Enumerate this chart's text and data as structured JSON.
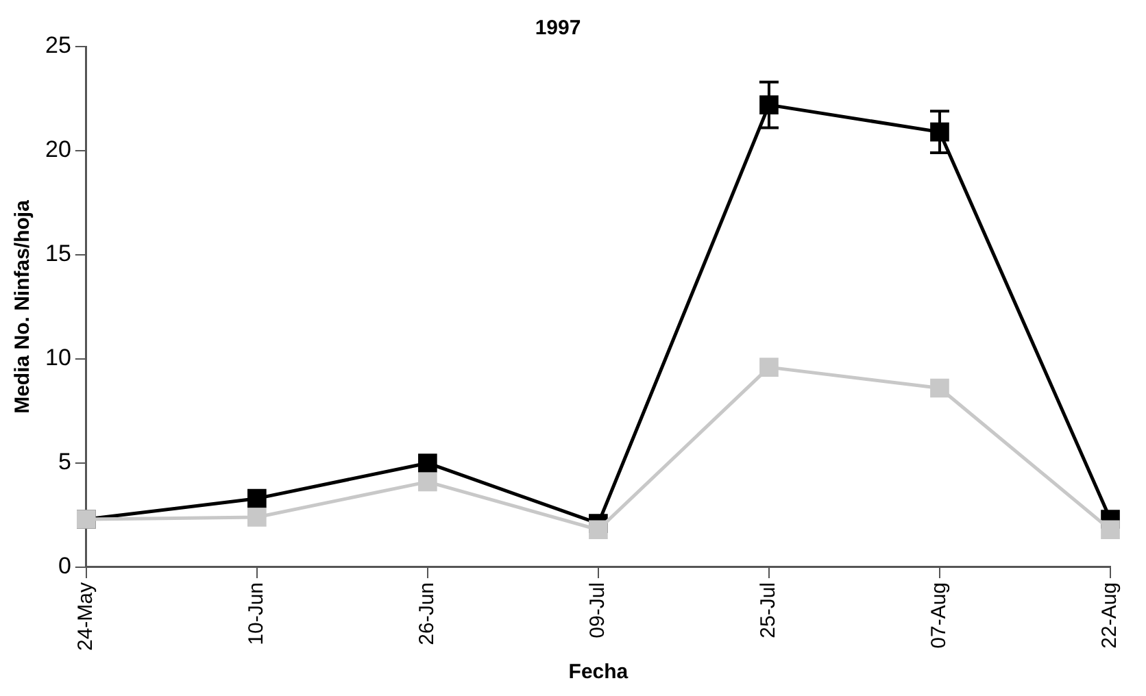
{
  "chart_data": {
    "type": "line",
    "title": "1997",
    "xlabel": "Fecha",
    "ylabel": "Media No. Ninfas/hoja",
    "categories": [
      "24-May",
      "10-Jun",
      "26-Jun",
      "09-Jul",
      "25-Jul",
      "07-Aug",
      "22-Aug"
    ],
    "series": [
      {
        "color": "#000000",
        "values": [
          2.3,
          3.3,
          5.0,
          2.1,
          22.2,
          20.9,
          2.3
        ],
        "errors": [
          null,
          null,
          null,
          null,
          1.1,
          1.0,
          null
        ]
      },
      {
        "color": "#c8c8c8",
        "values": [
          2.3,
          2.4,
          4.1,
          1.8,
          9.6,
          8.6,
          1.8
        ]
      }
    ],
    "ylim": [
      0,
      25
    ],
    "yticks": [
      0,
      5,
      10,
      15,
      20,
      25
    ],
    "grid": false,
    "legend": false,
    "marker": "square",
    "line_style": "solid"
  }
}
